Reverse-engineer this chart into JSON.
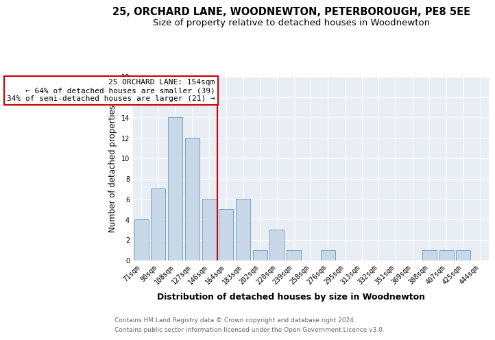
{
  "title": "25, ORCHARD LANE, WOODNEWTON, PETERBOROUGH, PE8 5EE",
  "subtitle": "Size of property relative to detached houses in Woodnewton",
  "xlabel": "Distribution of detached houses by size in Woodnewton",
  "ylabel": "Number of detached properties",
  "categories": [
    "71sqm",
    "90sqm",
    "108sqm",
    "127sqm",
    "146sqm",
    "164sqm",
    "183sqm",
    "202sqm",
    "220sqm",
    "239sqm",
    "258sqm",
    "276sqm",
    "295sqm",
    "313sqm",
    "332sqm",
    "351sqm",
    "369sqm",
    "388sqm",
    "407sqm",
    "425sqm",
    "444sqm"
  ],
  "values": [
    4,
    7,
    14,
    12,
    6,
    5,
    6,
    1,
    3,
    1,
    0,
    1,
    0,
    0,
    0,
    0,
    0,
    1,
    1,
    1,
    0
  ],
  "bar_color": "#c8d8e8",
  "bar_edge_color": "#6699bb",
  "background_color": "#e8eef4",
  "grid_color": "#ffffff",
  "annotation_box_text": "25 ORCHARD LANE: 154sqm\n← 64% of detached houses are smaller (39)\n34% of semi-detached houses are larger (21) →",
  "vline_x": 4.5,
  "vline_color": "#cc0000",
  "annotation_box_color": "#cc0000",
  "ylim": [
    0,
    18
  ],
  "yticks": [
    0,
    2,
    4,
    6,
    8,
    10,
    12,
    14,
    16,
    18
  ],
  "footer_line1": "Contains HM Land Registry data © Crown copyright and database right 2024.",
  "footer_line2": "Contains public sector information licensed under the Open Government Licence v3.0.",
  "title_fontsize": 10.5,
  "subtitle_fontsize": 9.5,
  "tick_fontsize": 7,
  "ylabel_fontsize": 8.5,
  "xlabel_fontsize": 9,
  "annotation_fontsize": 8,
  "footer_fontsize": 6.5
}
